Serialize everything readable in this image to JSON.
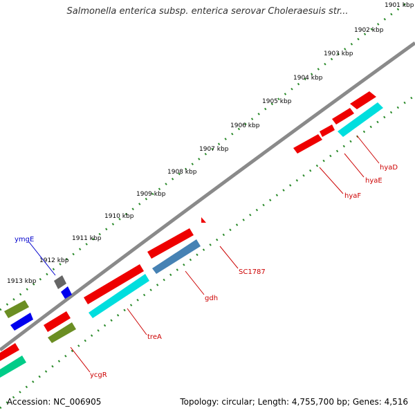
{
  "title": "Salmonella enterica subsp. enterica serovar Choleraesuis str...",
  "footer": {
    "accession": "Accession: NC_006905",
    "topology": "Topology: circular; Length: 4,755,700 bp; Genes: 4,516"
  },
  "scale": {
    "ticks": [
      "1901 kbp",
      "1902 kbp",
      "1903 kbp",
      "1904 kbp",
      "1905 kbp",
      "1906 kbp",
      "1907 kbp",
      "1908 kbp",
      "1909 kbp",
      "1910 kbp",
      "1911 kbp",
      "1912 kbp",
      "1913 kbp"
    ]
  },
  "colors": {
    "backbone": "#8a8a8a",
    "dots": "#2a8a2a",
    "red": "#ee0000",
    "cyan": "#00dede",
    "steel": "#4682b4",
    "olive": "#6b8e23",
    "blue": "#0000ee",
    "gray": "#666666",
    "teal": "#00cc88",
    "label_red": "#cc0000",
    "label_blue": "#0000cc"
  },
  "genes": [
    {
      "name": "hyaD",
      "color": "label_red"
    },
    {
      "name": "hyaE",
      "color": "label_red"
    },
    {
      "name": "hyaF",
      "color": "label_red"
    },
    {
      "name": "SC1787",
      "color": "label_red"
    },
    {
      "name": "gdh",
      "color": "label_red"
    },
    {
      "name": "treA",
      "color": "label_red"
    },
    {
      "name": "ycgR",
      "color": "label_red"
    },
    {
      "name": "ymgE",
      "color": "label_blue"
    }
  ]
}
